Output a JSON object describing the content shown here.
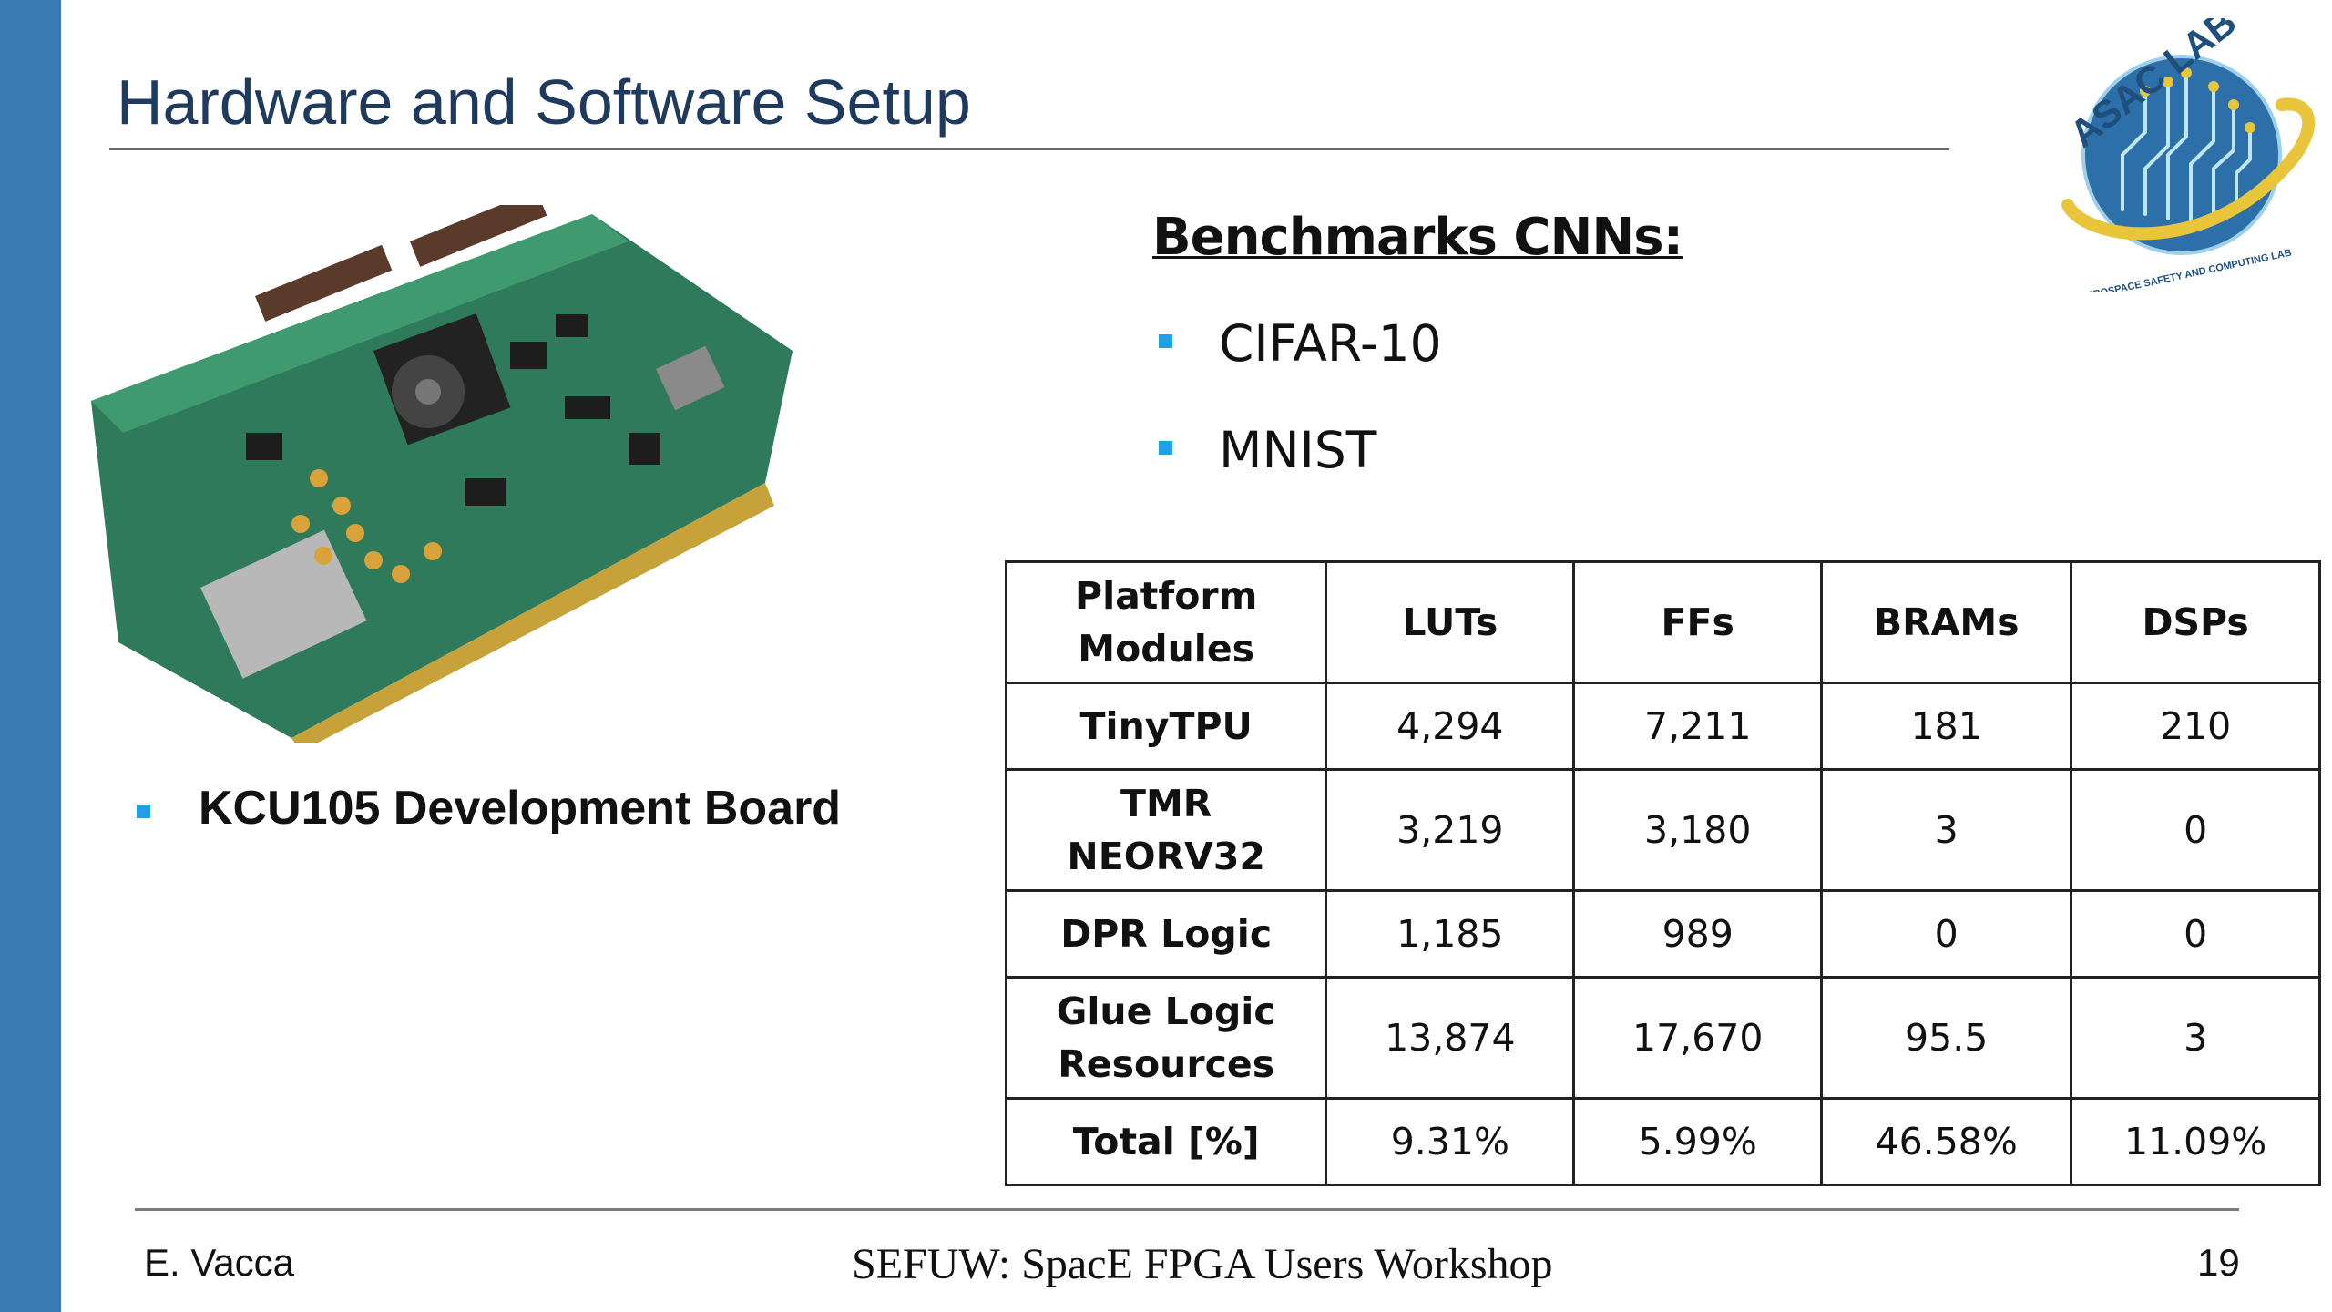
{
  "slide": {
    "title": "Hardware and Software Setup",
    "board_caption": "KCU105 Development Board",
    "benchmarks_title": "Benchmarks CNNs:",
    "benchmarks": [
      "CIFAR-10",
      "MNIST"
    ],
    "logo": {
      "text": "ASAC LAB",
      "subtext": "AEROSPACE SAFETY AND COMPUTING LAB"
    }
  },
  "table": {
    "headers": [
      "Platform Modules",
      "LUTs",
      "FFs",
      "BRAMs",
      "DSPs"
    ],
    "rows": [
      [
        "TinyTPU",
        "4,294",
        "7,211",
        "181",
        "210"
      ],
      [
        "TMR NEORV32",
        "3,219",
        "3,180",
        "3",
        "0"
      ],
      [
        "DPR Logic",
        "1,185",
        "989",
        "0",
        "0"
      ],
      [
        "Glue Logic Resources",
        "13,874",
        "17,670",
        "95.5",
        "3"
      ],
      [
        "Total [%]",
        "9.31%",
        "5.99%",
        "46.58%",
        "11.09%"
      ]
    ]
  },
  "footer": {
    "author": "E. Vacca",
    "event": "SEFUW: SpacE FPGA Users Workshop",
    "page": "19"
  },
  "colors": {
    "side_bar": "#3a7bb3",
    "title": "#1f3a5f",
    "bullet": "#1ea0e6",
    "logo_ring": "#e8c53a",
    "logo_globe": "#2d6fa8"
  }
}
